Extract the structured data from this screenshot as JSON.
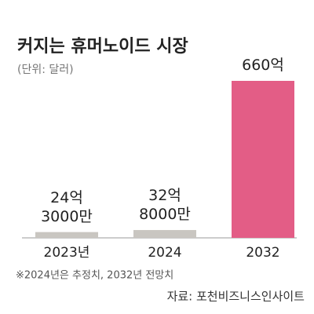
{
  "chart_data": {
    "type": "bar",
    "title": "커지는 휴머노이드 시장",
    "subtitle": "(단위: 달러)",
    "categories": [
      "2023년",
      "2024",
      "2032"
    ],
    "values": [
      24.3,
      32.8,
      660
    ],
    "value_labels": [
      "24억 3000만",
      "32억 8000만",
      "660억"
    ],
    "colors": [
      "#c9c6c1",
      "#c9c6c1",
      "#e35d86"
    ],
    "footnote": "※2024년은 추정치, 2032년 전망치",
    "source": "자료: 포천비즈니스인사이트"
  }
}
